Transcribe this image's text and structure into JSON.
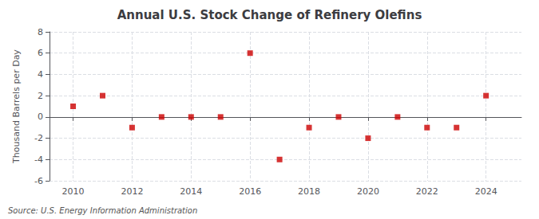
{
  "chart_data": {
    "type": "scatter",
    "title": "Annual U.S. Stock Change of Refinery Olefins",
    "ylabel": "Thousand Barrels per Day",
    "annotation": "Source: U.S. Energy Information Administration",
    "x": [
      2010,
      2011,
      2012,
      2013,
      2014,
      2015,
      2016,
      2017,
      2018,
      2019,
      2020,
      2021,
      2022,
      2023,
      2024
    ],
    "values": [
      1,
      2,
      -1,
      0,
      0,
      0,
      6,
      -4,
      -1,
      0,
      -2,
      0,
      -1,
      -1,
      2
    ],
    "color": "#cc0000",
    "marker": "square",
    "xlim": [
      2009.2,
      2025.2
    ],
    "xticks": [
      2010,
      2012,
      2014,
      2016,
      2018,
      2020,
      2022,
      2024
    ],
    "ylim": [
      -6,
      8
    ],
    "yticks": [
      -6,
      -4,
      -2,
      0,
      2,
      4,
      6,
      8
    ],
    "grid": true
  }
}
